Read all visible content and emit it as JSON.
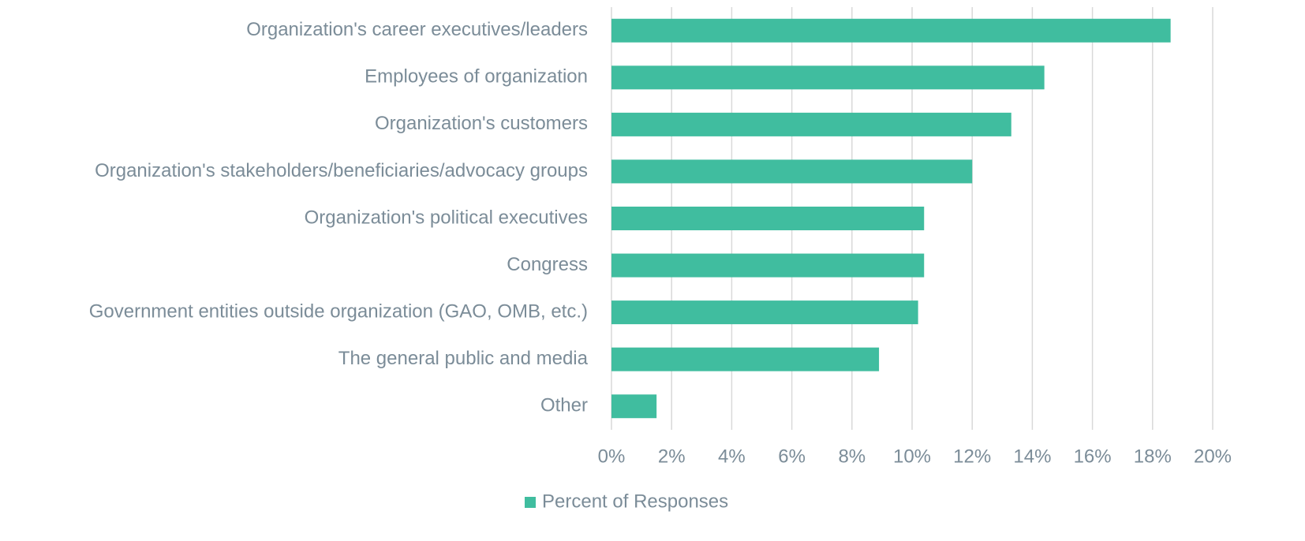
{
  "chart_data": {
    "type": "barh",
    "categories": [
      "Organization's career executives/leaders",
      "Employees of organization",
      "Organization's customers",
      "Organization's stakeholders/beneficiaries/advocacy groups",
      "Organization's political executives",
      "Congress",
      "Government entities outside organization (GAO, OMB, etc.)",
      "The general public and media",
      "Other"
    ],
    "series": [
      {
        "name": "Percent of Responses",
        "color": "#40bd9f",
        "values": [
          18.6,
          14.4,
          13.3,
          12.0,
          10.4,
          10.4,
          10.2,
          8.9,
          1.5
        ]
      }
    ],
    "xlim": [
      0,
      20
    ],
    "xticks": [
      {
        "value": 0,
        "label": "0%"
      },
      {
        "value": 2,
        "label": "2%"
      },
      {
        "value": 4,
        "label": "4%"
      },
      {
        "value": 6,
        "label": "6%"
      },
      {
        "value": 8,
        "label": "8%"
      },
      {
        "value": 10,
        "label": "10%"
      },
      {
        "value": 12,
        "label": "12%"
      },
      {
        "value": 14,
        "label": "14%"
      },
      {
        "value": 16,
        "label": "16%"
      },
      {
        "value": 18,
        "label": "18%"
      },
      {
        "value": 20,
        "label": "20%"
      }
    ],
    "grid": true,
    "legend": "bottom"
  }
}
